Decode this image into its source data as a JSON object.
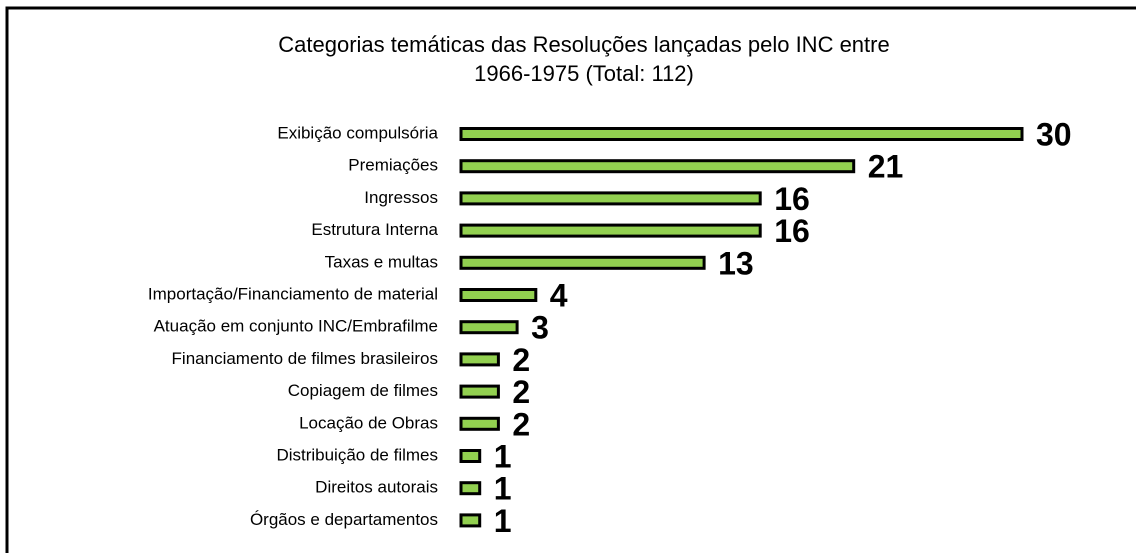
{
  "chart_data": {
    "type": "barh",
    "title": [
      "Categorias temáticas das Resoluções lançadas pelo INC entre",
      "1966-1975 (Total: 112)"
    ],
    "categories": [
      "Exibição compulsória",
      "Premiações",
      "Ingressos",
      "Estrutura Interna",
      "Taxas e multas",
      "Importação/Financiamento de material",
      "Atuação em conjunto INC/Embrafilme",
      "Financiamento de filmes brasileiros",
      "Copiagem de filmes",
      "Locação de Obras",
      "Distribuição de filmes",
      "Direitos autorais",
      "Órgãos e departamentos"
    ],
    "values": [
      30,
      21,
      16,
      16,
      13,
      4,
      3,
      2,
      2,
      2,
      1,
      1,
      1
    ],
    "color": "#92d050"
  }
}
